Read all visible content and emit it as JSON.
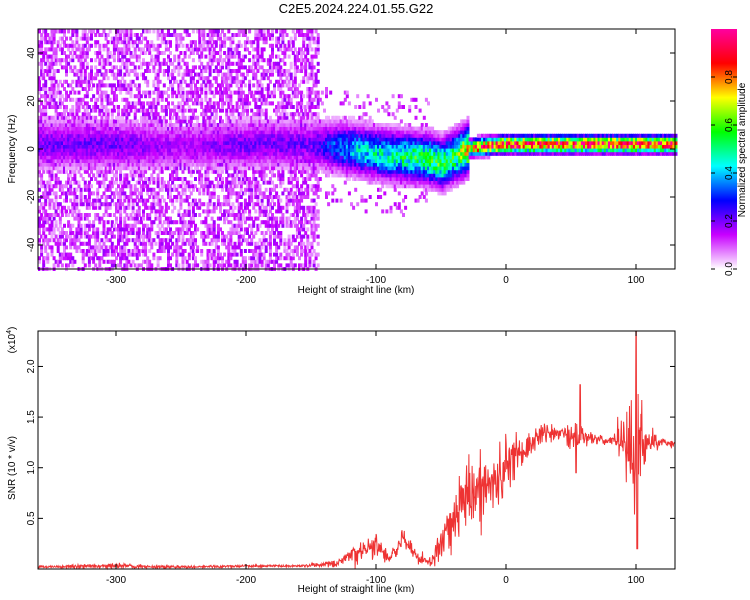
{
  "title": "C2E5.2024.224.01.55.G22",
  "chart_data": [
    {
      "type": "heatmap",
      "title": "C2E5.2024.224.01.55.G22",
      "xlabel": "Height of straight line (km)",
      "ylabel": "Frequency (Hz)",
      "xlim": [
        -360,
        130
      ],
      "ylim": [
        -50,
        50
      ],
      "xticks": [
        -300,
        -200,
        -100,
        0,
        100
      ],
      "yticks": [
        -40,
        -20,
        0,
        20,
        40
      ],
      "colorbar": {
        "label": "Normalized spectral amplitude",
        "range": [
          0.0,
          1.0
        ],
        "ticks": [
          0.0,
          0.2,
          0.4,
          0.6,
          0.8
        ],
        "colormap": [
          "#ffffff",
          "#c800ff",
          "#0000ff",
          "#00ffff",
          "#00ff00",
          "#ffff00",
          "#ff0000",
          "#ff00a0"
        ]
      },
      "ridge": {
        "description": "dominant frequency ridge",
        "x": [
          -360,
          -300,
          -250,
          -200,
          -150,
          -120,
          -100,
          -80,
          -60,
          -50,
          -40,
          -30,
          -20,
          0,
          50,
          100,
          130
        ],
        "y": [
          2,
          2,
          1,
          2,
          2,
          0,
          -2,
          -3,
          -4,
          -6,
          -3,
          0,
          1,
          2,
          2,
          2,
          2
        ],
        "amplitude": [
          0.2,
          0.2,
          0.15,
          0.2,
          0.2,
          0.4,
          0.45,
          0.5,
          0.55,
          0.55,
          0.55,
          0.7,
          0.85,
          0.9,
          0.9,
          0.9,
          0.9
        ]
      },
      "noise_region": {
        "x_from": -360,
        "x_to": -145,
        "amplitude": 0.15
      }
    },
    {
      "type": "line",
      "xlabel": "Height of straight line (km)",
      "ylabel": "SNR (10 * v/v)",
      "scale_label": "(x10",
      "scale_exponent": "4",
      "xlim": [
        -360,
        130
      ],
      "ylim": [
        0,
        2.35
      ],
      "xticks": [
        -300,
        -200,
        -100,
        0,
        100
      ],
      "yticks": [
        0.5,
        1.0,
        1.5,
        2.0
      ],
      "series": [
        {
          "name": "SNR",
          "color": "#ee3333",
          "x": [
            -360,
            -300,
            -250,
            -200,
            -160,
            -130,
            -115,
            -100,
            -90,
            -80,
            -70,
            -60,
            -55,
            -50,
            -40,
            -30,
            -20,
            -10,
            0,
            10,
            20,
            30,
            40,
            50,
            55,
            60,
            70,
            80,
            90,
            95,
            100,
            105,
            110,
            120,
            130
          ],
          "y": [
            0.02,
            0.03,
            0.02,
            0.03,
            0.03,
            0.05,
            0.15,
            0.25,
            0.08,
            0.3,
            0.15,
            0.06,
            0.12,
            0.28,
            0.55,
            0.75,
            0.7,
            0.85,
            1.0,
            1.15,
            1.25,
            1.35,
            1.35,
            1.3,
            1.35,
            1.3,
            1.28,
            1.27,
            1.26,
            1.25,
            1.2,
            1.25,
            1.26,
            1.25,
            1.24
          ],
          "noise": [
            0.01,
            0.02,
            0.01,
            0.01,
            0.01,
            0.03,
            0.1,
            0.1,
            0.05,
            0.1,
            0.06,
            0.03,
            0.08,
            0.15,
            0.25,
            0.3,
            0.35,
            0.3,
            0.25,
            0.15,
            0.1,
            0.08,
            0.06,
            0.1,
            0.15,
            0.06,
            0.04,
            0.04,
            0.2,
            0.4,
            0.6,
            0.3,
            0.15,
            0.04,
            0.03
          ],
          "peaks": [
            [
              57,
              1.82
            ],
            [
              100,
              2.38
            ],
            [
              101,
              0.2
            ],
            [
              54,
              0.95
            ]
          ]
        }
      ]
    }
  ]
}
